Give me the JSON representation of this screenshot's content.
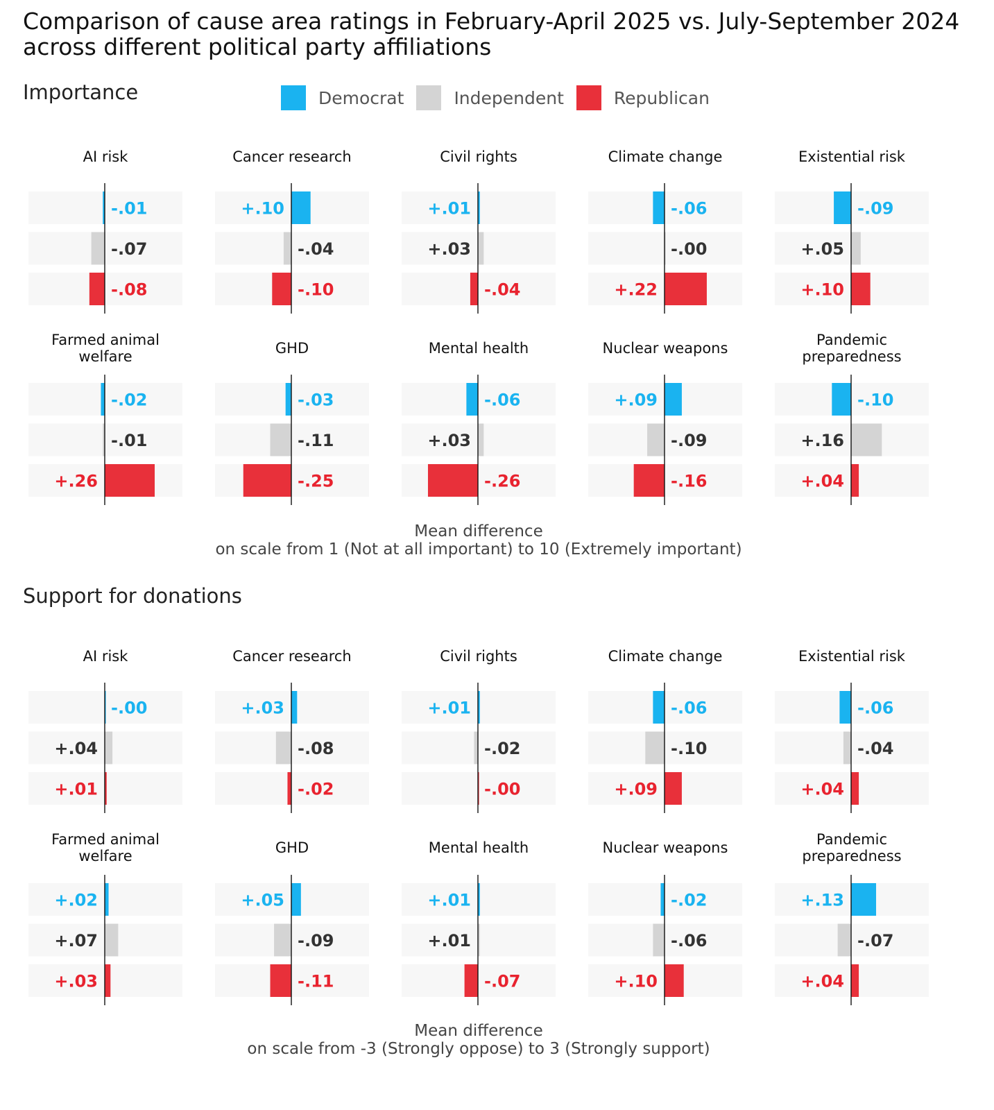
{
  "title_line1": "Comparison of cause area ratings in February-April 2025 vs. July-September 2024",
  "title_line2": "across different political party affiliations",
  "legend": [
    {
      "name": "Democrat",
      "color": "#1ab3f0"
    },
    {
      "name": "Independent",
      "color": "#d4d4d4"
    },
    {
      "name": "Republican",
      "color": "#e8303a"
    }
  ],
  "label_colors": {
    "Democrat": "#1ab3f0",
    "Independent": "#333333",
    "Republican": "#e8232f"
  },
  "sections": {
    "importance": {
      "title": "Importance",
      "axis_note_line1": "Mean difference",
      "axis_note_line2": "on scale from 1 (Not at all important) to 10 (Extremely important)"
    },
    "donations": {
      "title": "Support for donations",
      "axis_note_line1": "Mean difference",
      "axis_note_line2": "on scale from -3 (Strongly oppose) to 3 (Strongly support)"
    }
  },
  "chart_data": [
    {
      "type": "bar",
      "title": "Importance",
      "xlabel": "Mean difference on scale from 1 (Not at all important) to 10 (Extremely important)",
      "series_names": [
        "Democrat",
        "Independent",
        "Republican"
      ],
      "panels": [
        {
          "title": [
            "AI risk"
          ],
          "values": [
            -0.01,
            -0.07,
            -0.08
          ],
          "labels": [
            "-.01",
            "-.07",
            "-.08"
          ]
        },
        {
          "title": [
            "Cancer research"
          ],
          "values": [
            0.1,
            -0.04,
            -0.1
          ],
          "labels": [
            "+.10",
            "-.04",
            "-.10"
          ]
        },
        {
          "title": [
            "Civil rights"
          ],
          "values": [
            0.01,
            0.03,
            -0.04
          ],
          "labels": [
            "+.01",
            "+.03",
            "-.04"
          ]
        },
        {
          "title": [
            "Climate change"
          ],
          "values": [
            -0.06,
            -0.0,
            0.22
          ],
          "labels": [
            "-.06",
            "-.00",
            "+.22"
          ]
        },
        {
          "title": [
            "Existential risk"
          ],
          "values": [
            -0.09,
            0.05,
            0.1
          ],
          "labels": [
            "-.09",
            "+.05",
            "+.10"
          ]
        },
        {
          "title": [
            "Farmed animal",
            "welfare"
          ],
          "values": [
            -0.02,
            -0.01,
            0.26
          ],
          "labels": [
            "-.02",
            "-.01",
            "+.26"
          ]
        },
        {
          "title": [
            "GHD"
          ],
          "values": [
            -0.03,
            -0.11,
            -0.25
          ],
          "labels": [
            "-.03",
            "-.11",
            "-.25"
          ]
        },
        {
          "title": [
            "Mental health"
          ],
          "values": [
            -0.06,
            0.03,
            -0.26
          ],
          "labels": [
            "-.06",
            "+.03",
            "-.26"
          ]
        },
        {
          "title": [
            "Nuclear weapons"
          ],
          "values": [
            0.09,
            -0.09,
            -0.16
          ],
          "labels": [
            "+.09",
            "-.09",
            "-.16"
          ]
        },
        {
          "title": [
            "Pandemic",
            "preparedness"
          ],
          "values": [
            -0.1,
            0.16,
            0.04
          ],
          "labels": [
            "-.10",
            "+.16",
            "+.04"
          ]
        }
      ]
    },
    {
      "type": "bar",
      "title": "Support for donations",
      "xlabel": "Mean difference on scale from -3 (Strongly oppose) to 3 (Strongly support)",
      "series_names": [
        "Democrat",
        "Independent",
        "Republican"
      ],
      "panels": [
        {
          "title": [
            "AI risk"
          ],
          "values": [
            -0.0,
            0.04,
            0.01
          ],
          "labels": [
            "-.00",
            "+.04",
            "+.01"
          ]
        },
        {
          "title": [
            "Cancer research"
          ],
          "values": [
            0.03,
            -0.08,
            -0.02
          ],
          "labels": [
            "+.03",
            "-.08",
            "-.02"
          ]
        },
        {
          "title": [
            "Civil rights"
          ],
          "values": [
            0.01,
            -0.02,
            -0.0
          ],
          "labels": [
            "+.01",
            "-.02",
            "-.00"
          ]
        },
        {
          "title": [
            "Climate change"
          ],
          "values": [
            -0.06,
            -0.1,
            0.09
          ],
          "labels": [
            "-.06",
            "-.10",
            "+.09"
          ]
        },
        {
          "title": [
            "Existential risk"
          ],
          "values": [
            -0.06,
            -0.04,
            0.04
          ],
          "labels": [
            "-.06",
            "-.04",
            "+.04"
          ]
        },
        {
          "title": [
            "Farmed animal",
            "welfare"
          ],
          "values": [
            0.02,
            0.07,
            0.03
          ],
          "labels": [
            "+.02",
            "+.07",
            "+.03"
          ]
        },
        {
          "title": [
            "GHD"
          ],
          "values": [
            0.05,
            -0.09,
            -0.11
          ],
          "labels": [
            "+.05",
            "-.09",
            "-.11"
          ]
        },
        {
          "title": [
            "Mental health"
          ],
          "values": [
            0.01,
            0.01,
            -0.07
          ],
          "labels": [
            "+.01",
            "+.01",
            "-.07"
          ]
        },
        {
          "title": [
            "Nuclear weapons"
          ],
          "values": [
            -0.02,
            -0.06,
            0.1
          ],
          "labels": [
            "-.02",
            "-.06",
            "+.10"
          ]
        },
        {
          "title": [
            "Pandemic",
            "preparedness"
          ],
          "values": [
            0.13,
            -0.07,
            0.04
          ],
          "labels": [
            "+.13",
            "-.07",
            "+.04"
          ]
        }
      ]
    }
  ]
}
